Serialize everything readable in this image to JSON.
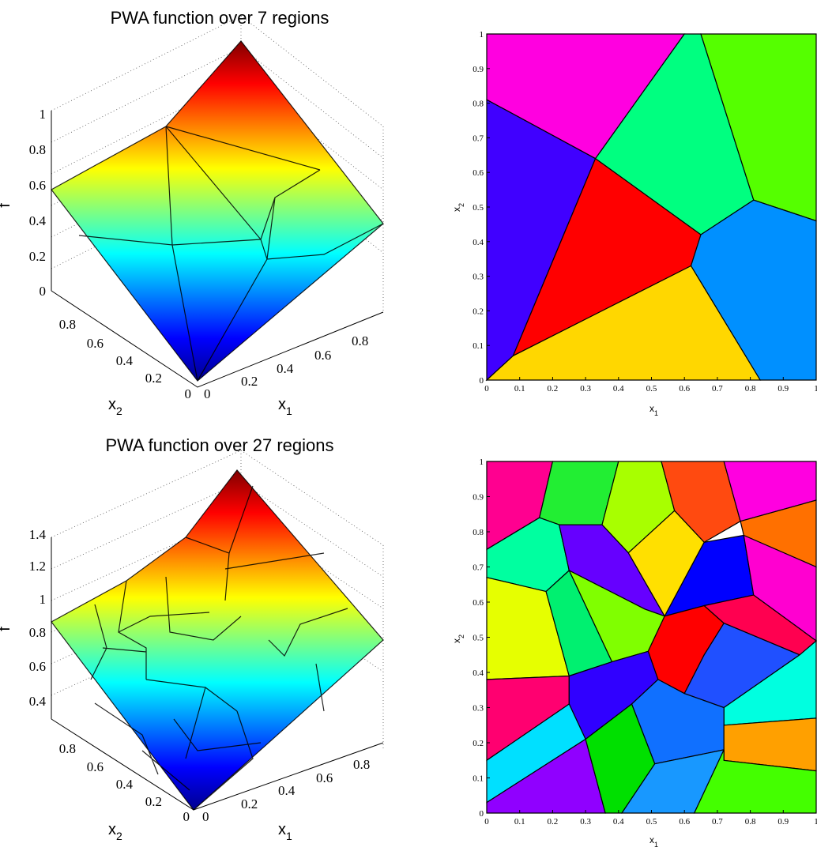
{
  "chart_data": [
    {
      "type": "surface",
      "title": "PWA function over 7 regions",
      "zlabel": "f",
      "xlabel": "x",
      "xlabel_sub": "1",
      "ylabel": "x",
      "ylabel_sub": "2",
      "zlim": [
        0,
        1.2
      ],
      "z_ticks": [
        "0",
        "0.2",
        "0.4",
        "0.6",
        "0.8",
        "1"
      ],
      "x_ticks": [
        "0",
        "0.2",
        "0.4",
        "0.6",
        "0.8"
      ],
      "y_ticks": [
        "0",
        "0.2",
        "0.4",
        "0.6",
        "0.8"
      ],
      "colormap": "jet",
      "regions": 7
    },
    {
      "type": "partition",
      "xlabel": "x",
      "xlabel_sub": "1",
      "ylabel": "x",
      "ylabel_sub": "2",
      "xlim": [
        0,
        1
      ],
      "ylim": [
        0,
        1
      ],
      "x_ticks": [
        "0",
        "0.1",
        "0.2",
        "0.3",
        "0.4",
        "0.5",
        "0.6",
        "0.7",
        "0.8",
        "0.9",
        "1"
      ],
      "y_ticks": [
        "0",
        "0.1",
        "0.2",
        "0.3",
        "0.4",
        "0.5",
        "0.6",
        "0.7",
        "0.8",
        "0.9",
        "1"
      ],
      "regions": [
        {
          "color": "#ff00e0",
          "points": [
            [
              0,
              1
            ],
            [
              0.6,
              1
            ],
            [
              0.33,
              0.64
            ],
            [
              0,
              0.81
            ]
          ]
        },
        {
          "color": "#00ff80",
          "points": [
            [
              0.6,
              1
            ],
            [
              0.65,
              1
            ],
            [
              0.81,
              0.52
            ],
            [
              0.65,
              0.42
            ],
            [
              0.33,
              0.64
            ]
          ]
        },
        {
          "color": "#55ff00",
          "points": [
            [
              0.65,
              1
            ],
            [
              1,
              1
            ],
            [
              1,
              0.46
            ],
            [
              0.81,
              0.52
            ]
          ]
        },
        {
          "color": "#4000ff",
          "points": [
            [
              0,
              0.81
            ],
            [
              0.33,
              0.64
            ],
            [
              0.08,
              0.07
            ],
            [
              0,
              0
            ]
          ]
        },
        {
          "color": "#ff0000",
          "points": [
            [
              0.33,
              0.64
            ],
            [
              0.65,
              0.42
            ],
            [
              0.62,
              0.33
            ],
            [
              0.08,
              0.07
            ]
          ]
        },
        {
          "color": "#0090ff",
          "points": [
            [
              0.65,
              0.42
            ],
            [
              0.81,
              0.52
            ],
            [
              1,
              0.46
            ],
            [
              1,
              0
            ],
            [
              0.83,
              0
            ],
            [
              0.62,
              0.33
            ]
          ]
        },
        {
          "color": "#ffd700",
          "points": [
            [
              0,
              0
            ],
            [
              0.08,
              0.07
            ],
            [
              0.62,
              0.33
            ],
            [
              0.83,
              0
            ]
          ]
        }
      ]
    },
    {
      "type": "surface",
      "title": "PWA function over 27 regions",
      "zlabel": "f",
      "xlabel": "x",
      "xlabel_sub": "1",
      "ylabel": "x",
      "ylabel_sub": "2",
      "zlim": [
        0.2,
        1.6
      ],
      "z_ticks": [
        "0.4",
        "0.6",
        "0.8",
        "1",
        "1.2",
        "1.4"
      ],
      "x_ticks": [
        "0",
        "0.2",
        "0.4",
        "0.6",
        "0.8"
      ],
      "y_ticks": [
        "0",
        "0.2",
        "0.4",
        "0.6",
        "0.8"
      ],
      "colormap": "jet",
      "regions": 27
    },
    {
      "type": "partition",
      "xlabel": "x",
      "xlabel_sub": "1",
      "ylabel": "x",
      "ylabel_sub": "2",
      "xlim": [
        0,
        1
      ],
      "ylim": [
        0,
        1
      ],
      "x_ticks": [
        "0",
        "0.1",
        "0.2",
        "0.3",
        "0.4",
        "0.5",
        "0.6",
        "0.7",
        "0.8",
        "0.9",
        "1"
      ],
      "y_ticks": [
        "0",
        "0.1",
        "0.2",
        "0.3",
        "0.4",
        "0.5",
        "0.6",
        "0.7",
        "0.8",
        "0.9",
        "1"
      ],
      "regions": [
        {
          "color": "#ff0090",
          "points": [
            [
              0,
              1
            ],
            [
              0.2,
              1
            ],
            [
              0.16,
              0.84
            ],
            [
              0,
              0.75
            ]
          ]
        },
        {
          "color": "#22ee33",
          "points": [
            [
              0.2,
              1
            ],
            [
              0.4,
              1
            ],
            [
              0.35,
              0.82
            ],
            [
              0.22,
              0.82
            ],
            [
              0.16,
              0.84
            ]
          ]
        },
        {
          "color": "#a8ff00",
          "points": [
            [
              0.4,
              1
            ],
            [
              0.53,
              1
            ],
            [
              0.57,
              0.86
            ],
            [
              0.43,
              0.74
            ],
            [
              0.35,
              0.82
            ]
          ]
        },
        {
          "color": "#ff4a10",
          "points": [
            [
              0.53,
              1
            ],
            [
              0.72,
              1
            ],
            [
              0.77,
              0.83
            ],
            [
              0.66,
              0.77
            ],
            [
              0.57,
              0.86
            ]
          ]
        },
        {
          "color": "#ff00e0",
          "points": [
            [
              0.72,
              1
            ],
            [
              1,
              1
            ],
            [
              1,
              0.89
            ],
            [
              0.77,
              0.83
            ]
          ]
        },
        {
          "color": "#00ffa0",
          "points": [
            [
              0,
              0.75
            ],
            [
              0.16,
              0.84
            ],
            [
              0.22,
              0.82
            ],
            [
              0.25,
              0.69
            ],
            [
              0.18,
              0.63
            ],
            [
              0,
              0.67
            ]
          ]
        },
        {
          "color": "#6600ff",
          "points": [
            [
              0.22,
              0.82
            ],
            [
              0.35,
              0.82
            ],
            [
              0.43,
              0.74
            ],
            [
              0.54,
              0.56
            ],
            [
              0.48,
              0.58
            ],
            [
              0.25,
              0.69
            ]
          ]
        },
        {
          "color": "#ffe000",
          "points": [
            [
              0.43,
              0.74
            ],
            [
              0.57,
              0.86
            ],
            [
              0.66,
              0.77
            ],
            [
              0.54,
              0.56
            ]
          ]
        },
        {
          "color": "#ff7000",
          "points": [
            [
              0.77,
              0.83
            ],
            [
              1,
              0.89
            ],
            [
              1,
              0.7
            ],
            [
              0.78,
              0.79
            ]
          ]
        },
        {
          "color": "#0000ff",
          "points": [
            [
              0.66,
              0.77
            ],
            [
              0.78,
              0.79
            ],
            [
              0.81,
              0.62
            ],
            [
              0.66,
              0.59
            ],
            [
              0.54,
              0.56
            ]
          ]
        },
        {
          "color": "#ff00d0",
          "points": [
            [
              0.78,
              0.79
            ],
            [
              1,
              0.7
            ],
            [
              1,
              0.49
            ],
            [
              0.81,
              0.62
            ]
          ]
        },
        {
          "color": "#80ff00",
          "points": [
            [
              0.25,
              0.69
            ],
            [
              0.48,
              0.58
            ],
            [
              0.54,
              0.56
            ],
            [
              0.49,
              0.46
            ],
            [
              0.38,
              0.43
            ]
          ]
        },
        {
          "color": "#e6ff00",
          "points": [
            [
              0,
              0.67
            ],
            [
              0.18,
              0.63
            ],
            [
              0.25,
              0.39
            ],
            [
              0,
              0.38
            ]
          ]
        },
        {
          "color": "#00f070",
          "points": [
            [
              0.18,
              0.63
            ],
            [
              0.25,
              0.69
            ],
            [
              0.38,
              0.43
            ],
            [
              0.25,
              0.39
            ]
          ]
        },
        {
          "color": "#ff0000",
          "points": [
            [
              0.54,
              0.56
            ],
            [
              0.66,
              0.59
            ],
            [
              0.72,
              0.54
            ],
            [
              0.66,
              0.45
            ],
            [
              0.6,
              0.34
            ],
            [
              0.52,
              0.38
            ],
            [
              0.49,
              0.46
            ]
          ]
        },
        {
          "color": "#ff0050",
          "points": [
            [
              0.66,
              0.59
            ],
            [
              0.81,
              0.62
            ],
            [
              1,
              0.49
            ],
            [
              0.95,
              0.45
            ],
            [
              0.72,
              0.54
            ]
          ]
        },
        {
          "color": "#2050ff",
          "points": [
            [
              0.72,
              0.54
            ],
            [
              0.95,
              0.45
            ],
            [
              0.72,
              0.3
            ],
            [
              0.6,
              0.34
            ],
            [
              0.66,
              0.45
            ]
          ]
        },
        {
          "color": "#00ffe0",
          "points": [
            [
              0.95,
              0.45
            ],
            [
              1,
              0.49
            ],
            [
              1,
              0.27
            ],
            [
              0.72,
              0.25
            ],
            [
              0.72,
              0.3
            ]
          ]
        },
        {
          "color": "#ff0070",
          "points": [
            [
              0,
              0.38
            ],
            [
              0.25,
              0.39
            ],
            [
              0.25,
              0.31
            ],
            [
              0,
              0.15
            ]
          ]
        },
        {
          "color": "#3000ff",
          "points": [
            [
              0.25,
              0.39
            ],
            [
              0.38,
              0.43
            ],
            [
              0.49,
              0.46
            ],
            [
              0.52,
              0.38
            ],
            [
              0.44,
              0.31
            ],
            [
              0.3,
              0.21
            ],
            [
              0.25,
              0.31
            ]
          ]
        },
        {
          "color": "#1070ff",
          "points": [
            [
              0.52,
              0.38
            ],
            [
              0.6,
              0.34
            ],
            [
              0.72,
              0.3
            ],
            [
              0.72,
              0.18
            ],
            [
              0.51,
              0.14
            ],
            [
              0.44,
              0.31
            ]
          ]
        },
        {
          "color": "#00e0ff",
          "points": [
            [
              0,
              0.15
            ],
            [
              0.25,
              0.31
            ],
            [
              0.3,
              0.21
            ],
            [
              0,
              0.03
            ]
          ]
        },
        {
          "color": "#9000ff",
          "points": [
            [
              0,
              0.03
            ],
            [
              0.3,
              0.21
            ],
            [
              0.36,
              0
            ],
            [
              0,
              0
            ]
          ]
        },
        {
          "color": "#00e000",
          "points": [
            [
              0.3,
              0.21
            ],
            [
              0.44,
              0.31
            ],
            [
              0.51,
              0.14
            ],
            [
              0.41,
              0
            ],
            [
              0.36,
              0
            ]
          ]
        },
        {
          "color": "#1898ff",
          "points": [
            [
              0.41,
              0
            ],
            [
              0.51,
              0.14
            ],
            [
              0.72,
              0.18
            ],
            [
              0.63,
              0
            ]
          ]
        },
        {
          "color": "#ffa000",
          "points": [
            [
              0.72,
              0.25
            ],
            [
              1,
              0.27
            ],
            [
              1,
              0.12
            ],
            [
              0.72,
              0.15
            ]
          ]
        },
        {
          "color": "#44ff00",
          "points": [
            [
              0.63,
              0
            ],
            [
              0.72,
              0.18
            ],
            [
              0.72,
              0.15
            ],
            [
              1,
              0.12
            ],
            [
              1,
              0
            ]
          ]
        }
      ]
    }
  ]
}
